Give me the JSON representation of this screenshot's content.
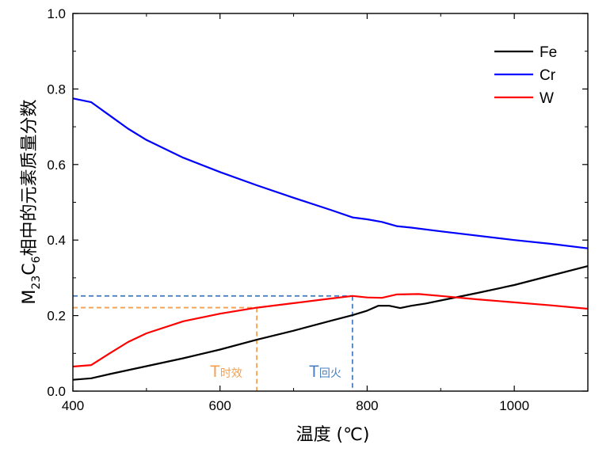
{
  "chart_data": {
    "type": "line",
    "xlabel": "温度 (℃)",
    "ylabel": {
      "main": "M",
      "sub1": "23",
      "mid": "C",
      "sub2": "6",
      "rest": "相中的元素质量分数"
    },
    "xlim": [
      400,
      1100
    ],
    "ylim": [
      0,
      1.0
    ],
    "x_ticks": [
      400,
      600,
      800,
      1000
    ],
    "y_ticks": [
      0.0,
      0.2,
      0.4,
      0.6,
      0.8,
      1.0
    ],
    "y_tick_labels": [
      "0.0",
      "0.2",
      "0.4",
      "0.6",
      "0.8",
      "1.0"
    ],
    "grid": false,
    "legend_position": "top-right",
    "series": [
      {
        "name": "Fe",
        "color": "#000000",
        "points": [
          [
            400,
            0.03
          ],
          [
            425,
            0.034
          ],
          [
            450,
            0.045
          ],
          [
            500,
            0.066
          ],
          [
            550,
            0.087
          ],
          [
            600,
            0.11
          ],
          [
            650,
            0.136
          ],
          [
            700,
            0.16
          ],
          [
            750,
            0.186
          ],
          [
            780,
            0.201
          ],
          [
            800,
            0.213
          ],
          [
            815,
            0.226
          ],
          [
            830,
            0.226
          ],
          [
            845,
            0.22
          ],
          [
            860,
            0.226
          ],
          [
            880,
            0.232
          ],
          [
            900,
            0.24
          ],
          [
            950,
            0.26
          ],
          [
            1000,
            0.281
          ],
          [
            1050,
            0.306
          ],
          [
            1100,
            0.331
          ]
        ]
      },
      {
        "name": "Cr",
        "color": "#0000ff",
        "points": [
          [
            400,
            0.775
          ],
          [
            425,
            0.765
          ],
          [
            450,
            0.73
          ],
          [
            475,
            0.695
          ],
          [
            500,
            0.665
          ],
          [
            550,
            0.618
          ],
          [
            600,
            0.58
          ],
          [
            650,
            0.545
          ],
          [
            700,
            0.512
          ],
          [
            750,
            0.48
          ],
          [
            780,
            0.46
          ],
          [
            800,
            0.455
          ],
          [
            820,
            0.448
          ],
          [
            840,
            0.437
          ],
          [
            860,
            0.433
          ],
          [
            900,
            0.423
          ],
          [
            1000,
            0.4
          ],
          [
            1050,
            0.39
          ],
          [
            1100,
            0.378
          ]
        ]
      },
      {
        "name": "W",
        "color": "#ff0000",
        "points": [
          [
            400,
            0.065
          ],
          [
            425,
            0.069
          ],
          [
            450,
            0.1
          ],
          [
            475,
            0.13
          ],
          [
            500,
            0.153
          ],
          [
            550,
            0.185
          ],
          [
            600,
            0.205
          ],
          [
            650,
            0.221
          ],
          [
            700,
            0.233
          ],
          [
            750,
            0.245
          ],
          [
            780,
            0.252
          ],
          [
            800,
            0.248
          ],
          [
            820,
            0.247
          ],
          [
            840,
            0.256
          ],
          [
            870,
            0.257
          ],
          [
            900,
            0.252
          ],
          [
            950,
            0.243
          ],
          [
            1000,
            0.235
          ],
          [
            1050,
            0.227
          ],
          [
            1100,
            0.218
          ]
        ]
      }
    ],
    "reference_lines": [
      {
        "label_main": "T",
        "label_sub": "时效",
        "color": "#f4a050",
        "x": 650,
        "y": 0.221
      },
      {
        "label_main": "T",
        "label_sub": "回火",
        "color": "#4a80c0",
        "x": 780,
        "y": 0.252
      }
    ]
  }
}
